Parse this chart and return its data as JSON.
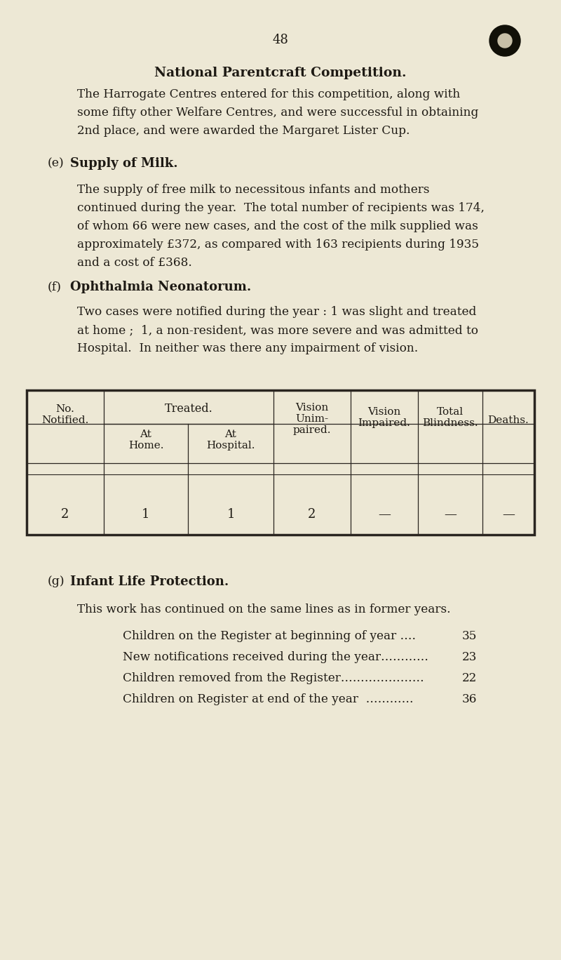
{
  "bg_color": "#ede8d5",
  "page_number": "48",
  "title": "National Parentcraft Competition.",
  "para1_lines": [
    "The Harrogate Centres entered for this competition, along with",
    "some fifty other Welfare Centres, and were successful in obtaining",
    "2nd place, and were awarded the Margaret Lister Cup."
  ],
  "section_e_label": "(e)",
  "section_e_title": "Supply of Milk.",
  "para2_lines": [
    "The supply of free milk to necessitous infants and mothers",
    "continued during the year.  The total number of recipients was 174,",
    "of whom 66 were new cases, and the cost of the milk supplied was",
    "approximately £372, as compared with 163 recipients during 1935",
    "and a cost of £368."
  ],
  "section_f_label": "(f)",
  "section_f_title": "Ophthalmia Neonatorum.",
  "para3_lines": [
    "Two cases were notified during the year : 1 was slight and treated",
    "at home ;  1, a non-resident, was more severe and was admitted to",
    "Hospital.  In neither was there any impairment of vision."
  ],
  "table_treated_header": "Treated.",
  "table_data": [
    "2",
    "1",
    "1",
    "2",
    "—",
    "—",
    "—"
  ],
  "section_g_label": "(g)",
  "section_g_title": "Infant Life Protection.",
  "para4": "This work has continued on the same lines as in former years.",
  "list_items": [
    [
      "Children on the Register at beginning of year ….",
      "35"
    ],
    [
      "New notifications received during the year…………",
      "23"
    ],
    [
      "Children removed from the Register…………………",
      "22"
    ],
    [
      "Children on Register at end of the year  …………",
      "36"
    ]
  ],
  "text_color": "#1e1a14",
  "line_color": "#2a2520",
  "hole_color": "#111008"
}
